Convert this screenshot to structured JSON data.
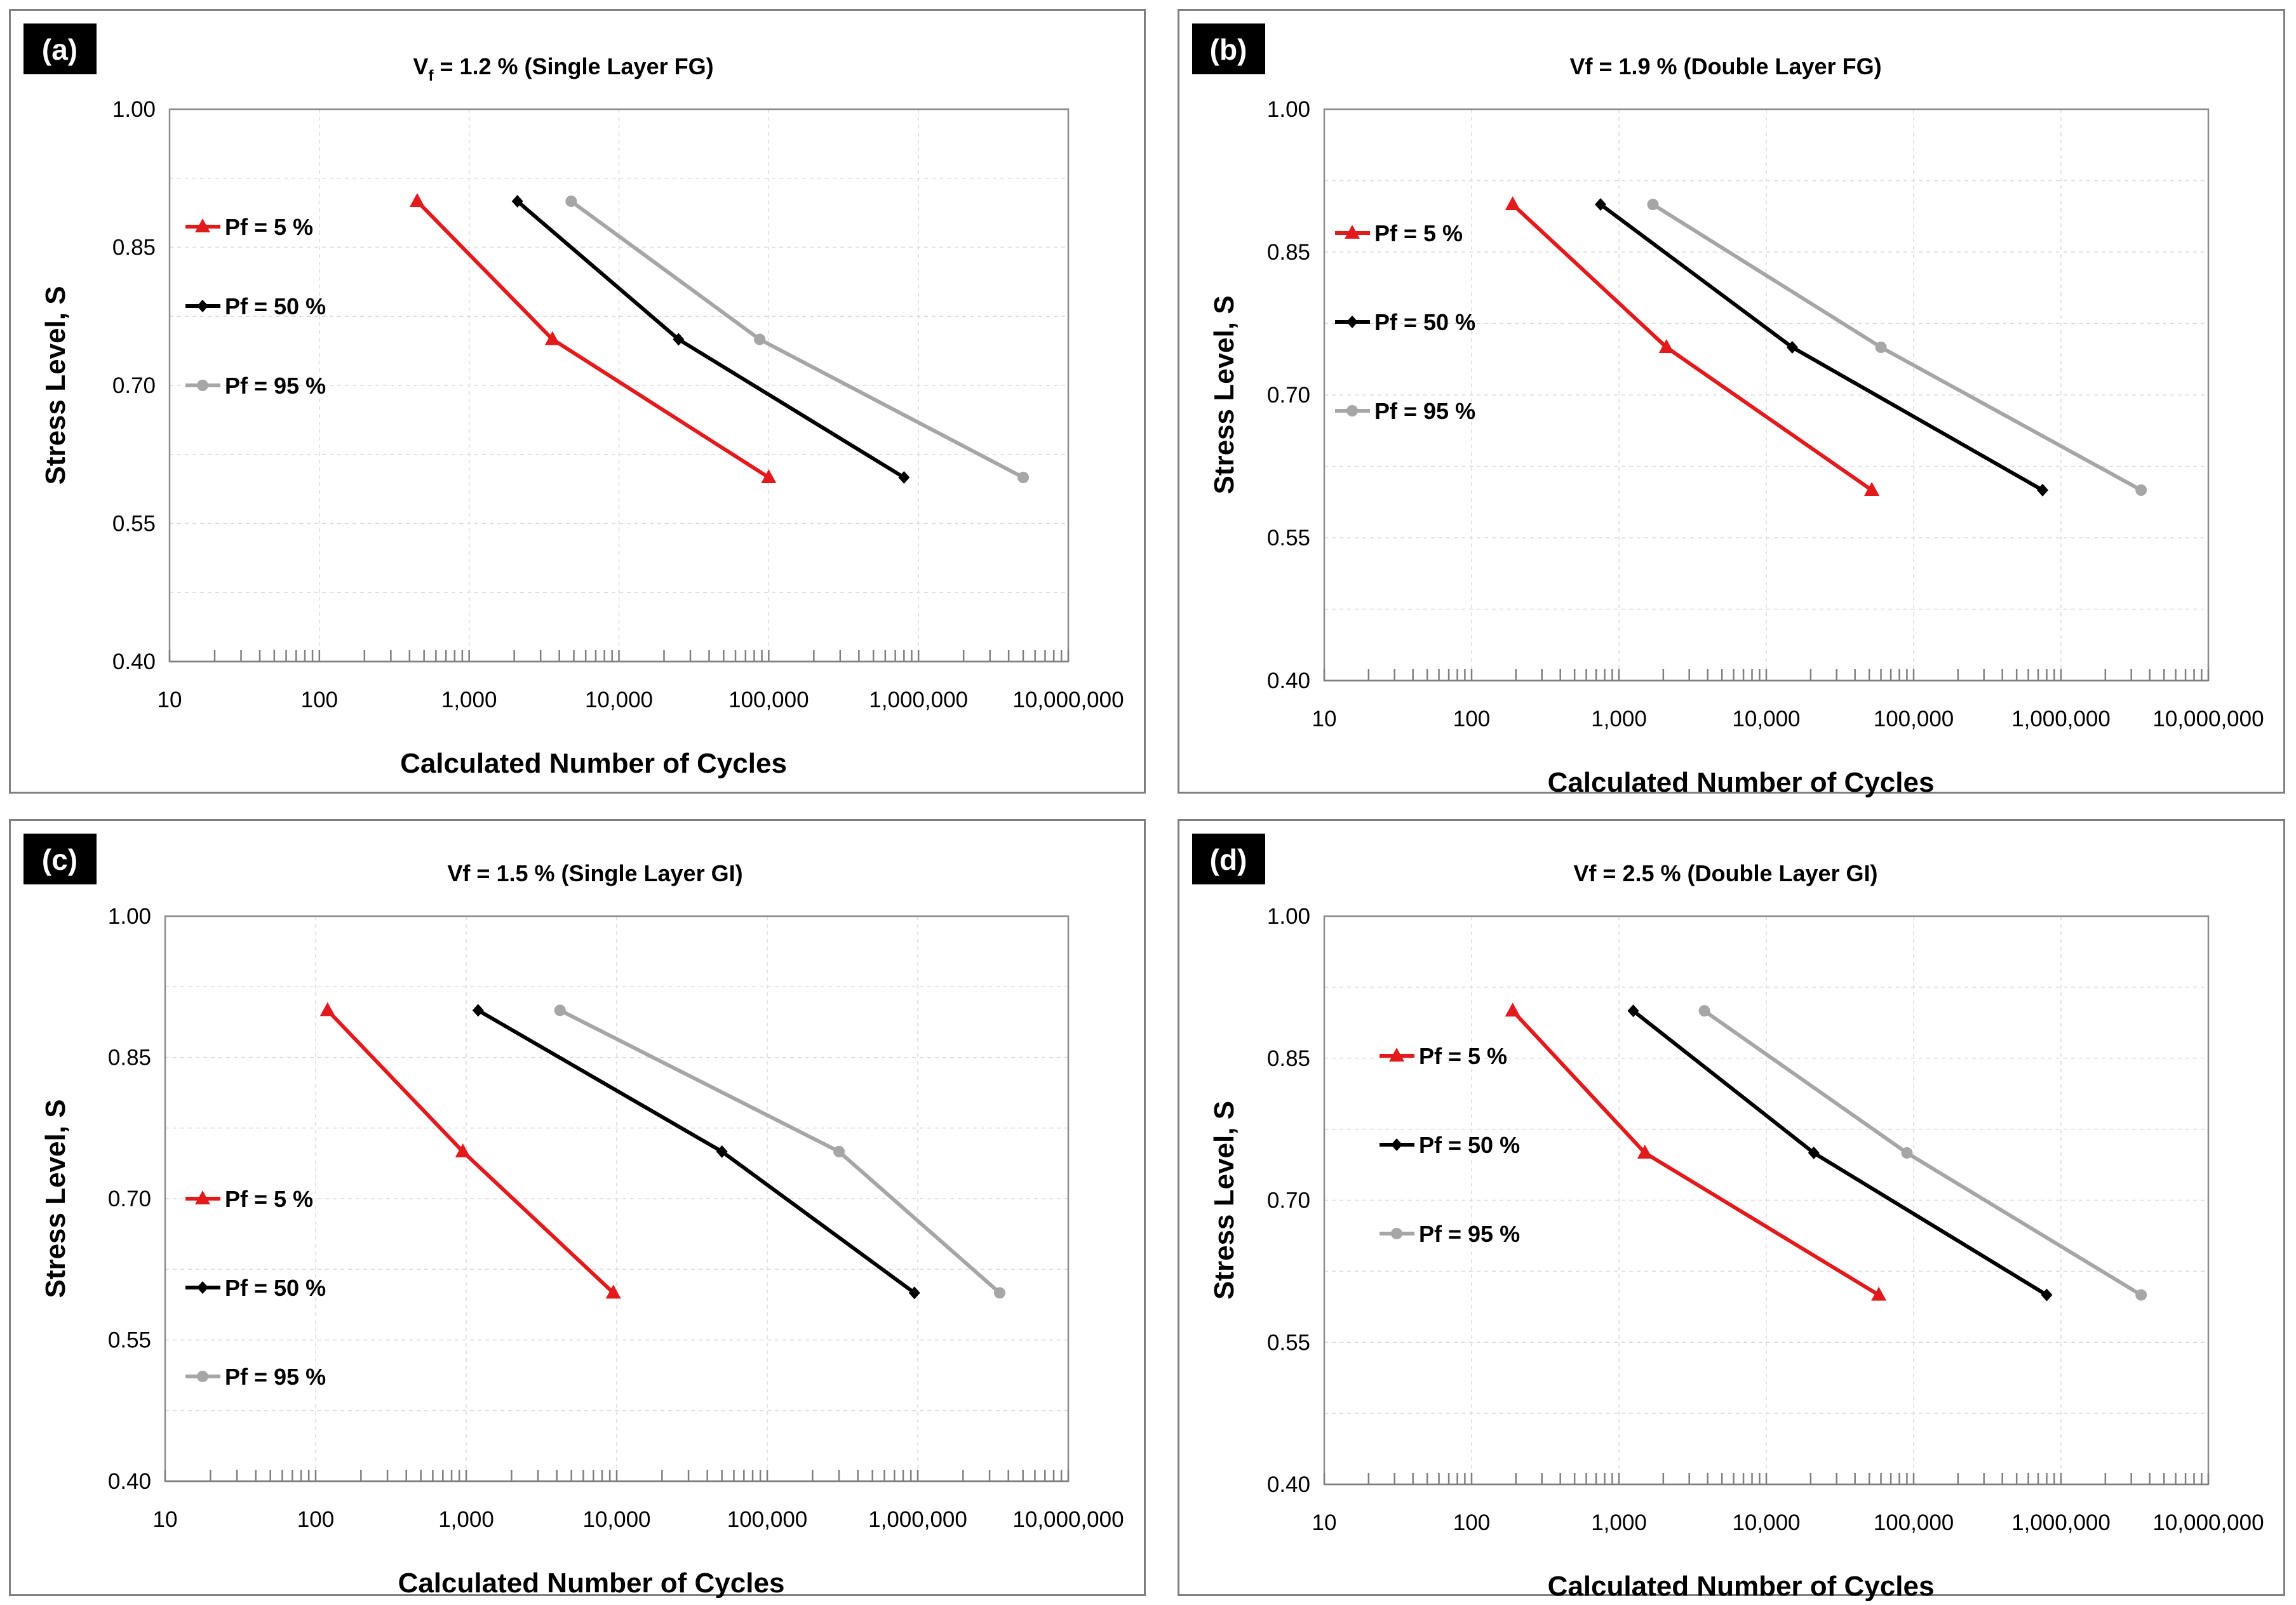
{
  "chart_data": [
    {
      "panel_label": "(a)",
      "type": "line",
      "title": "V<sub>f</sub> = 1.2 % (Single Layer FG)",
      "title_parts": [
        "V",
        "f",
        " = 1.2 % (Single Layer FG)"
      ],
      "xlabel": "Calculated Number of Cycles",
      "ylabel": "Stress Level, S",
      "x_scale": "log",
      "xlim": [
        10,
        10000000
      ],
      "ylim": [
        0.4,
        1.0
      ],
      "x_ticks": [
        "10",
        "100",
        "1,000",
        "10,000",
        "100,000",
        "1,000,000",
        "10,000,000"
      ],
      "y_ticks": [
        "0.40",
        "0.55",
        "0.70",
        "0.85",
        "1.00"
      ],
      "grid": true,
      "legend_position": "upper-left",
      "series": [
        {
          "name": "Pf = 5 %",
          "color": "#e31a1c",
          "marker": "triangle",
          "x": [
            450,
            3600,
            100000
          ],
          "y": [
            0.9,
            0.75,
            0.6
          ]
        },
        {
          "name": "Pf = 50 %",
          "color": "#000000",
          "marker": "diamond",
          "x": [
            2100,
            25000,
            800000
          ],
          "y": [
            0.9,
            0.75,
            0.6
          ]
        },
        {
          "name": "Pf = 95 %",
          "color": "#a6a6a6",
          "marker": "circle",
          "x": [
            4800,
            87000,
            5000000
          ],
          "y": [
            0.9,
            0.75,
            0.6
          ]
        }
      ]
    },
    {
      "panel_label": "(b)",
      "type": "line",
      "title": "Vf = 1.9 % (Double Layer FG)",
      "xlabel": "Calculated Number of Cycles",
      "ylabel": "Stress Level, S",
      "x_scale": "log",
      "xlim": [
        10,
        10000000
      ],
      "ylim": [
        0.4,
        1.0
      ],
      "x_ticks": [
        "10",
        "100",
        "1,000",
        "10,000",
        "100,000",
        "1,000,000",
        "10,000,000"
      ],
      "y_ticks": [
        "0.40",
        "0.55",
        "0.70",
        "0.85",
        "1.00"
      ],
      "grid": true,
      "legend_position": "upper-left",
      "series": [
        {
          "name": "Pf = 5 %",
          "color": "#e31a1c",
          "marker": "triangle",
          "x": [
            190,
            2100,
            52000
          ],
          "y": [
            0.9,
            0.75,
            0.6
          ]
        },
        {
          "name": "Pf = 50 %",
          "color": "#000000",
          "marker": "diamond",
          "x": [
            750,
            15000,
            750000
          ],
          "y": [
            0.9,
            0.75,
            0.6
          ]
        },
        {
          "name": "Pf = 95 %",
          "color": "#a6a6a6",
          "marker": "circle",
          "x": [
            1700,
            60000,
            3500000
          ],
          "y": [
            0.9,
            0.75,
            0.6
          ]
        }
      ]
    },
    {
      "panel_label": "(c)",
      "type": "line",
      "title": "Vf = 1.5 % (Single Layer GI)",
      "xlabel": "Calculated Number of Cycles",
      "ylabel": "Stress Level, S",
      "x_scale": "log",
      "xlim": [
        10,
        10000000
      ],
      "ylim": [
        0.4,
        1.0
      ],
      "x_ticks": [
        "10",
        "100",
        "1,000",
        "10,000",
        "100,000",
        "1,000,000",
        "10,000,000"
      ],
      "y_ticks": [
        "0.40",
        "0.55",
        "0.70",
        "0.85",
        "1.00"
      ],
      "grid": true,
      "legend_position": "lower-left",
      "series": [
        {
          "name": "Pf = 5 %",
          "color": "#e31a1c",
          "marker": "triangle",
          "x": [
            120,
            950,
            9500
          ],
          "y": [
            0.9,
            0.75,
            0.6
          ]
        },
        {
          "name": "Pf = 50 %",
          "color": "#000000",
          "marker": "diamond",
          "x": [
            1200,
            50000,
            950000
          ],
          "y": [
            0.9,
            0.75,
            0.6
          ]
        },
        {
          "name": "Pf = 95 %",
          "color": "#a6a6a6",
          "marker": "circle",
          "x": [
            4200,
            300000,
            3500000
          ],
          "y": [
            0.9,
            0.75,
            0.6
          ]
        }
      ]
    },
    {
      "panel_label": "(d)",
      "type": "line",
      "title": "Vf = 2.5 % (Double Layer GI)",
      "xlabel": "Calculated Number of Cycles",
      "ylabel": "Stress Level, S",
      "x_scale": "log",
      "xlim": [
        10,
        10000000
      ],
      "ylim": [
        0.4,
        1.0
      ],
      "x_ticks": [
        "10",
        "100",
        "1,000",
        "10,000",
        "100,000",
        "1,000,000",
        "10,000,000"
      ],
      "y_ticks": [
        "0.40",
        "0.55",
        "0.70",
        "0.85",
        "1.00"
      ],
      "grid": true,
      "legend_position": "middle-left",
      "series": [
        {
          "name": "Pf = 5 %",
          "color": "#e31a1c",
          "marker": "triangle",
          "x": [
            190,
            1500,
            58000
          ],
          "y": [
            0.9,
            0.75,
            0.6
          ]
        },
        {
          "name": "Pf = 50 %",
          "color": "#000000",
          "marker": "diamond",
          "x": [
            1250,
            21000,
            800000
          ],
          "y": [
            0.9,
            0.75,
            0.6
          ]
        },
        {
          "name": "Pf = 95 %",
          "color": "#a6a6a6",
          "marker": "circle",
          "x": [
            3800,
            90000,
            3500000
          ],
          "y": [
            0.9,
            0.75,
            0.6
          ]
        }
      ]
    }
  ]
}
